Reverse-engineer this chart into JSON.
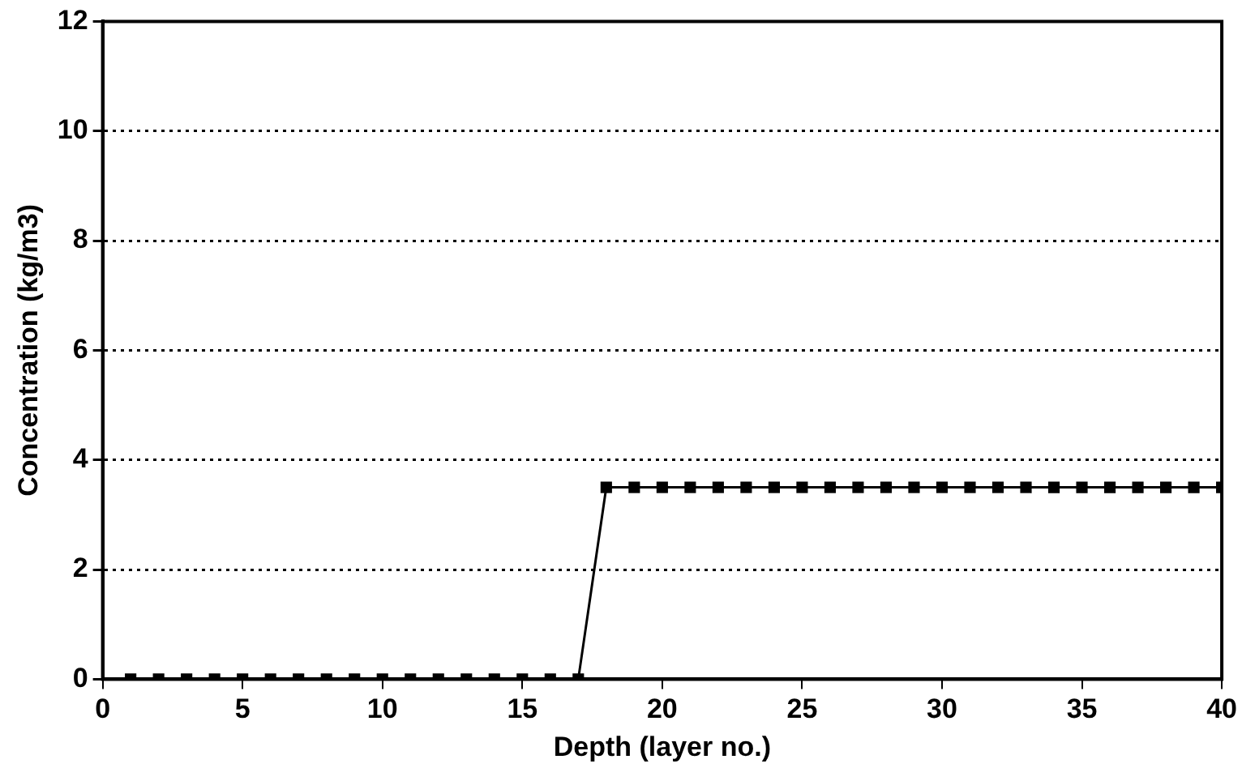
{
  "chart_data": {
    "type": "line",
    "xlabel": "Depth (layer no.)",
    "ylabel": "Concentration (kg/m3)",
    "x": [
      1,
      2,
      3,
      4,
      5,
      6,
      7,
      8,
      9,
      10,
      11,
      12,
      13,
      14,
      15,
      16,
      17,
      18,
      19,
      20,
      21,
      22,
      23,
      24,
      25,
      26,
      27,
      28,
      29,
      30,
      31,
      32,
      33,
      34,
      35,
      36,
      37,
      38,
      39,
      40
    ],
    "series": [
      {
        "color": "#000000",
        "values": [
          0,
          0,
          0,
          0,
          0,
          0,
          0,
          0,
          0,
          0,
          0,
          0,
          0,
          0,
          0,
          0,
          0,
          3.5,
          3.5,
          3.5,
          3.5,
          3.5,
          3.5,
          3.5,
          3.5,
          3.5,
          3.5,
          3.5,
          3.5,
          3.5,
          3.5,
          3.5,
          3.5,
          3.5,
          3.5,
          3.5,
          3.5,
          3.5,
          3.5,
          3.5
        ]
      }
    ],
    "xlim": [
      0,
      40
    ],
    "xticks": [
      0,
      5,
      10,
      15,
      20,
      25,
      30,
      35,
      40
    ],
    "ylim": [
      0,
      12
    ],
    "yticks": [
      0,
      2,
      4,
      6,
      8,
      10,
      12
    ],
    "grid": "y",
    "legend": false,
    "marker": "square",
    "line_style": "solid"
  }
}
